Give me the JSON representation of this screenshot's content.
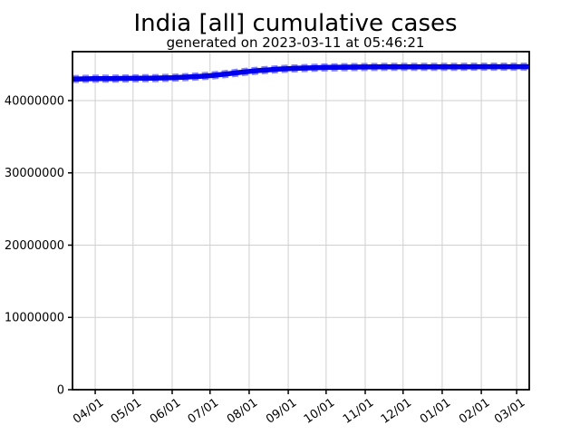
{
  "chart_data": {
    "type": "line",
    "title": "India [all] cumulative cases",
    "subtitle": "generated on 2023-03-11 at 05:46:21",
    "xlabel": "",
    "ylabel": "",
    "grid": true,
    "legend_position": "none",
    "x_unit": "days (x tick labels are month/day dates shown on axis)",
    "xlim": [
      0,
      362
    ],
    "ylim": [
      0,
      46770000
    ],
    "x_ticks": [
      {
        "day": 18,
        "label": "04/01"
      },
      {
        "day": 48,
        "label": "05/01"
      },
      {
        "day": 79,
        "label": "06/01"
      },
      {
        "day": 109,
        "label": "07/01"
      },
      {
        "day": 140,
        "label": "08/01"
      },
      {
        "day": 171,
        "label": "09/01"
      },
      {
        "day": 201,
        "label": "10/01"
      },
      {
        "day": 232,
        "label": "11/01"
      },
      {
        "day": 262,
        "label": "12/01"
      },
      {
        "day": 293,
        "label": "01/01"
      },
      {
        "day": 324,
        "label": "02/01"
      },
      {
        "day": 352,
        "label": "03/01"
      }
    ],
    "y_ticks": [
      {
        "value": 0,
        "label": "0"
      },
      {
        "value": 10000000,
        "label": "10000000"
      },
      {
        "value": 20000000,
        "label": "20000000"
      },
      {
        "value": 30000000,
        "label": "30000000"
      },
      {
        "value": 40000000,
        "label": "40000000"
      }
    ],
    "series": [
      {
        "name": "cumulative cases",
        "color": "#0000ee",
        "halo_color": "#8888ff",
        "points": [
          [
            0,
            42985000
          ],
          [
            9,
            43005000
          ],
          [
            18,
            43030000
          ],
          [
            33,
            43048000
          ],
          [
            48,
            43080000
          ],
          [
            63,
            43113000
          ],
          [
            79,
            43160000
          ],
          [
            87,
            43222000
          ],
          [
            94,
            43290000
          ],
          [
            101,
            43362000
          ],
          [
            109,
            43452000
          ],
          [
            117,
            43585000
          ],
          [
            124,
            43720000
          ],
          [
            132,
            43880000
          ],
          [
            140,
            44040000
          ],
          [
            148,
            44160000
          ],
          [
            155,
            44245000
          ],
          [
            163,
            44350000
          ],
          [
            171,
            44430000
          ],
          [
            179,
            44478000
          ],
          [
            186,
            44516000
          ],
          [
            201,
            44590000
          ],
          [
            216,
            44624000
          ],
          [
            232,
            44650000
          ],
          [
            247,
            44662000
          ],
          [
            262,
            44670000
          ],
          [
            277,
            44674000
          ],
          [
            293,
            44678000
          ],
          [
            308,
            44681000
          ],
          [
            324,
            44684000
          ],
          [
            338,
            44687000
          ],
          [
            352,
            44690000
          ],
          [
            362,
            44692000
          ]
        ]
      }
    ],
    "colors": {
      "background": "#ffffff",
      "grid": "#cfcfcf",
      "frame": "#000000",
      "text": "#000000"
    }
  }
}
